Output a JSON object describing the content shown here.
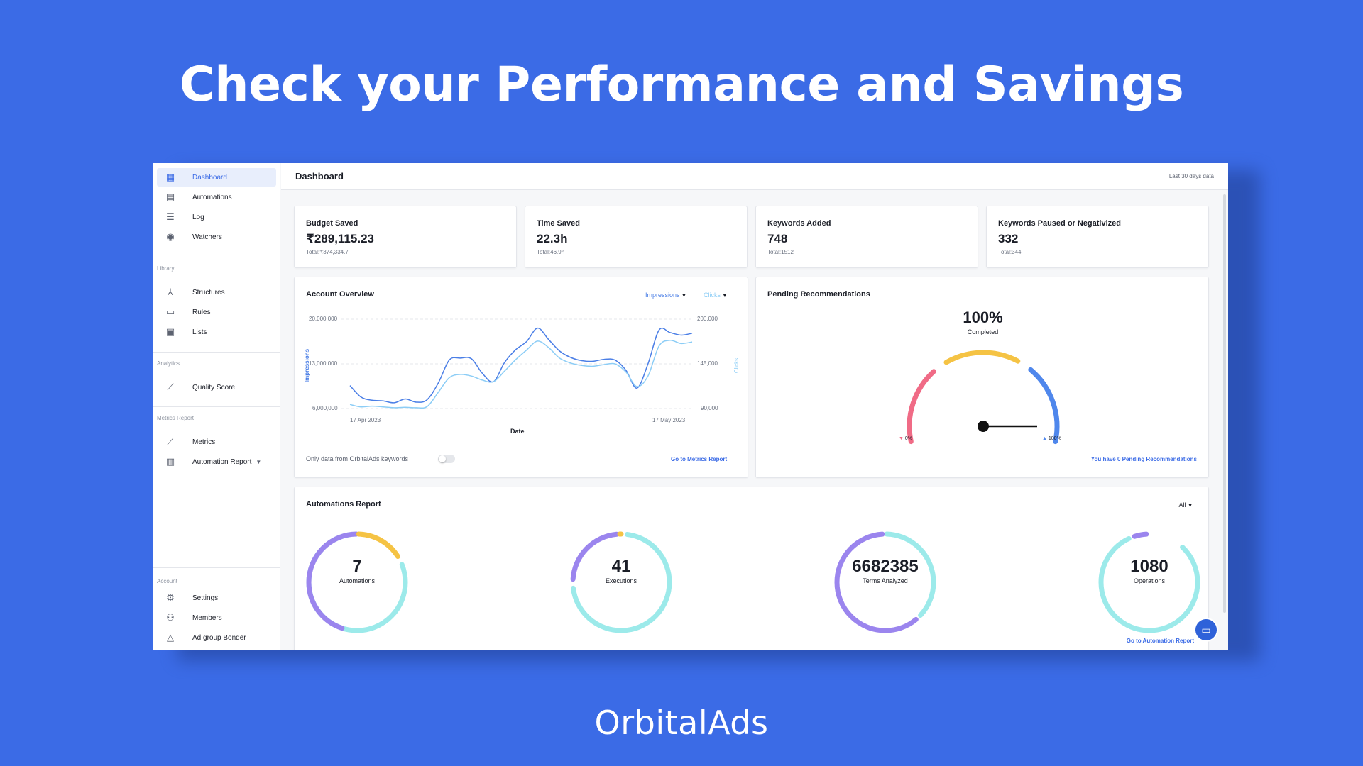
{
  "hero": {
    "title": "Check your Performance and Savings",
    "brand": "OrbitalAds"
  },
  "sidebar": {
    "main": [
      {
        "label": "Dashboard",
        "icon": "dashboard-icon"
      },
      {
        "label": "Automations",
        "icon": "calendar-icon"
      },
      {
        "label": "Log",
        "icon": "log-icon"
      },
      {
        "label": "Watchers",
        "icon": "eye-icon"
      }
    ],
    "library_label": "Library",
    "library": [
      {
        "label": "Structures",
        "icon": "structure-icon"
      },
      {
        "label": "Rules",
        "icon": "ruler-icon"
      },
      {
        "label": "Lists",
        "icon": "list-icon"
      }
    ],
    "analytics_label": "Analytics",
    "analytics": [
      {
        "label": "Quality Score",
        "icon": "trend-icon"
      }
    ],
    "metrics_label": "Metrics Report",
    "metrics": [
      {
        "label": "Metrics",
        "icon": "chart-line-icon"
      },
      {
        "label": "Automation Report",
        "icon": "report-icon"
      }
    ],
    "account_label": "Account",
    "account": [
      {
        "label": "Settings",
        "icon": "user-settings-icon"
      },
      {
        "label": "Members",
        "icon": "members-icon"
      },
      {
        "label": "Ad group Bonder",
        "icon": "shapes-icon"
      }
    ]
  },
  "header": {
    "title": "Dashboard",
    "note": "Last 30 days data"
  },
  "stats": [
    {
      "label": "Budget Saved",
      "value": "₹289,115.23",
      "sub": "Total:₹374,334.7"
    },
    {
      "label": "Time Saved",
      "value": "22.3h",
      "sub": "Total:46.9h"
    },
    {
      "label": "Keywords Added",
      "value": "748",
      "sub": "Total:1512"
    },
    {
      "label": "Keywords Paused or Negativized",
      "value": "332",
      "sub": "Total:344"
    }
  ],
  "account_overview": {
    "title": "Account Overview",
    "metric1": "Impressions",
    "metric2": "Clicks",
    "toggle_label": "Only data from OrbitalAds keywords",
    "link": "Go to Metrics Report"
  },
  "chart_data": {
    "type": "line",
    "title": "Account Overview",
    "xlabel": "Date",
    "x_ticks": [
      "17 Apr 2023",
      "17 May 2023"
    ],
    "y_left": {
      "label": "Impressions",
      "ticks": [
        "20,000,000",
        "13,000,000",
        "6,000,000"
      ],
      "range": [
        6000000,
        20000000
      ]
    },
    "y_right": {
      "label": "Clicks",
      "ticks": [
        "200,000",
        "145,000",
        "90,000"
      ],
      "range": [
        90000,
        200000
      ]
    },
    "grid": true,
    "series": [
      {
        "name": "Impressions",
        "color": "#4a7ee6",
        "axis": "left",
        "values": [
          9600000,
          7800000,
          7300000,
          7200000,
          6900000,
          7500000,
          7000000,
          7400000,
          10000000,
          13600000,
          13900000,
          13800000,
          11500000,
          10200000,
          13200000,
          15200000,
          16500000,
          18600000,
          16800000,
          15000000,
          14000000,
          13500000,
          13400000,
          13700000,
          13600000,
          12000000,
          9200000,
          13000000,
          18300000,
          17900000,
          17500000,
          17800000
        ]
      },
      {
        "name": "Clicks",
        "color": "#8ccdf6",
        "axis": "right",
        "values": [
          95000,
          92000,
          93000,
          92000,
          91000,
          91500,
          91000,
          92500,
          110000,
          128000,
          132000,
          130000,
          125000,
          123000,
          136000,
          150000,
          162000,
          173000,
          165000,
          152000,
          146000,
          143000,
          142000,
          144000,
          145000,
          135000,
          117000,
          130000,
          167000,
          174000,
          170000,
          172000
        ]
      }
    ]
  },
  "pending": {
    "title": "Pending Recommendations",
    "percent": "100%",
    "caption": "Completed",
    "level": 1.0,
    "min_label": "0%",
    "max_label": "100%",
    "link": "You have 0 Pending Recommendations",
    "colors": {
      "red": "#f06b86",
      "yellow": "#f5c344",
      "blue": "#4f87ec"
    }
  },
  "automations_report": {
    "title": "Automations Report",
    "filter": "All",
    "link": "Go to Automation Report",
    "rings": [
      {
        "value": "7",
        "caption": "Automations"
      },
      {
        "value": "41",
        "caption": "Executions"
      },
      {
        "value": "6682385",
        "caption": "Terms Analyzed"
      },
      {
        "value": "1080",
        "caption": "Operations"
      }
    ],
    "colors": {
      "purple": "#9b85ee",
      "yellow": "#f5c344",
      "teal": "#9ceaea"
    }
  }
}
